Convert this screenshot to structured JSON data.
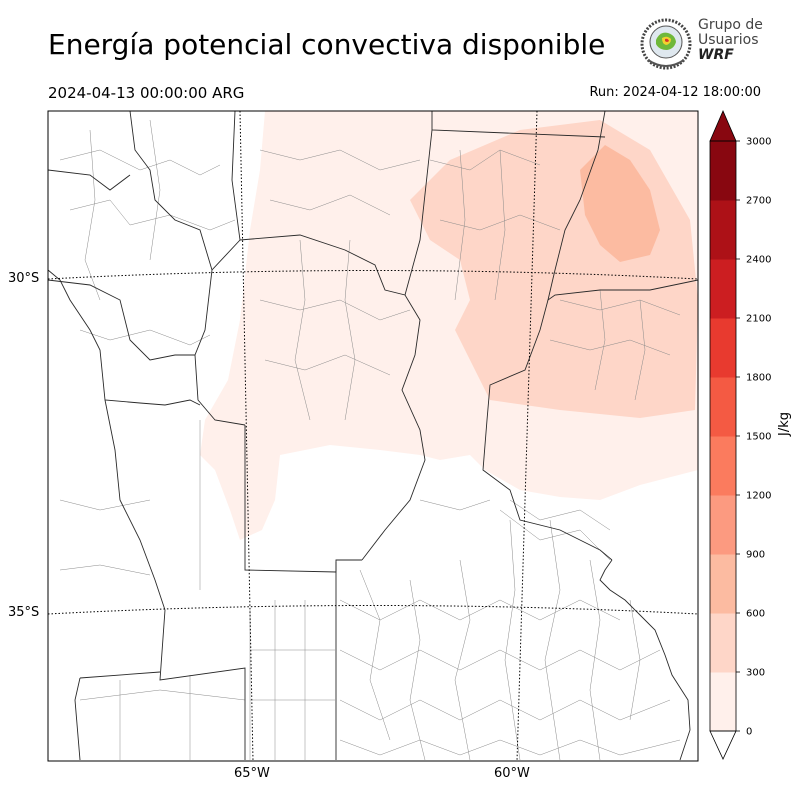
{
  "header": {
    "title": "Energía potencial convectiva disponible",
    "valid_time": "2024-04-13 00:00:00 ARG",
    "run_time": "Run: 2024-04-12 18:00:00"
  },
  "logo": {
    "line1": "Grupo de",
    "line2": "Usuarios",
    "line3": "WRF"
  },
  "map": {
    "lat_labels": [
      "30°S",
      "35°S"
    ],
    "lon_labels": [
      "65°W",
      "60°W"
    ]
  },
  "colorbar": {
    "unit": "J/kg",
    "levels": [
      0,
      300,
      600,
      900,
      1200,
      1500,
      1800,
      2100,
      2400,
      2700,
      3000
    ],
    "tick_labels": [
      "0",
      "300",
      "600",
      "900",
      "1200",
      "1500",
      "1800",
      "2100",
      "2400",
      "2700",
      "3000"
    ],
    "colors": [
      "#fff0eb",
      "#fed6c8",
      "#fcbba1",
      "#fc9a80",
      "#fb7b5e",
      "#f45a43",
      "#e83a2f",
      "#cc1e21",
      "#ad1117",
      "#880710"
    ],
    "extend": "both"
  }
}
